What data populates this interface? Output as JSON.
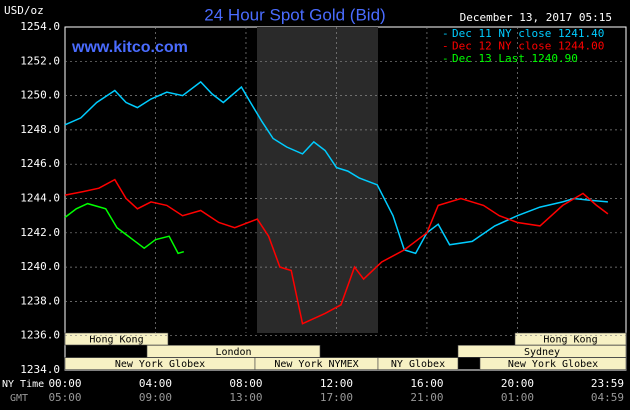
{
  "chart_data": {
    "type": "line",
    "title": "24 Hour Spot Gold (Bid)",
    "y_label": "USD/oz",
    "source": "www.kitco.com",
    "timestamp": "December 13, 2017 05:15",
    "x_row_labels": [
      "NY Time",
      "GMT"
    ],
    "xlim": [
      0,
      24.8
    ],
    "xticks": [
      {
        "value": 0,
        "label": "00:00"
      },
      {
        "value": 4,
        "label": "04:00"
      },
      {
        "value": 8,
        "label": "08:00"
      },
      {
        "value": 12,
        "label": "12:00"
      },
      {
        "value": 16,
        "label": "16:00"
      },
      {
        "value": 20,
        "label": "20:00"
      },
      {
        "value": 23.98,
        "label": "23:59"
      }
    ],
    "x_labels_gmt": [
      "05:00",
      "09:00",
      "13:00",
      "17:00",
      "21:00",
      "01:00",
      "04:59"
    ],
    "ylim": [
      1234,
      1254
    ],
    "yticks": [
      {
        "value": 1234,
        "label": "1234.0"
      },
      {
        "value": 1236,
        "label": "1236.0"
      },
      {
        "value": 1238,
        "label": "1238.0"
      },
      {
        "value": 1240,
        "label": "1240.0"
      },
      {
        "value": 1242,
        "label": "1242.0"
      },
      {
        "value": 1244,
        "label": "1244.0"
      },
      {
        "value": 1246,
        "label": "1246.0"
      },
      {
        "value": 1248,
        "label": "1248.0"
      },
      {
        "value": 1250,
        "label": "1250.0"
      },
      {
        "value": 1252,
        "label": "1252.0"
      },
      {
        "value": 1254,
        "label": "1254.0"
      }
    ],
    "grid": true,
    "sessions": [
      "Hong Kong",
      "London",
      "New York Globex",
      "New York NYMEX",
      "NY Globex",
      "Sydney"
    ],
    "series": [
      {
        "name": "Dec 11 NY close 1241.40",
        "color": "#00ccff",
        "x": [
          0,
          0.7,
          1.4,
          2.2,
          2.7,
          3.2,
          3.8,
          4.5,
          5.2,
          6,
          6.5,
          7,
          7.8,
          8.2,
          8.7,
          9.2,
          9.8,
          10.5,
          11,
          11.5,
          12,
          12.5,
          13,
          13.8,
          14.5,
          15,
          15.5,
          16,
          16.5,
          17,
          18,
          19,
          20,
          21,
          22,
          22.5,
          23.2,
          24
        ],
        "values": [
          1248.3,
          1248.7,
          1249.6,
          1250.3,
          1249.6,
          1249.3,
          1249.8,
          1250.2,
          1250.0,
          1250.8,
          1250.1,
          1249.6,
          1250.5,
          1249.6,
          1248.5,
          1247.5,
          1247.0,
          1246.6,
          1247.3,
          1246.8,
          1245.8,
          1245.6,
          1245.2,
          1244.8,
          1243.0,
          1241.0,
          1240.8,
          1242.0,
          1242.5,
          1241.3,
          1241.5,
          1242.4,
          1243.0,
          1243.5,
          1243.8,
          1244.0,
          1243.9,
          1243.8
        ]
      },
      {
        "name": "Dec 12 NY close 1244.00",
        "color": "#ff0000",
        "x": [
          0,
          0.8,
          1.5,
          2.2,
          2.7,
          3.2,
          3.8,
          4.5,
          5.2,
          6,
          6.8,
          7.5,
          8.5,
          9,
          9.5,
          10,
          10.5,
          11,
          11.5,
          12.2,
          12.8,
          13.2,
          14,
          15,
          16,
          16.5,
          17.5,
          18.5,
          19.2,
          20,
          21,
          22,
          22.9,
          23.5,
          24
        ],
        "values": [
          1244.2,
          1244.4,
          1244.6,
          1245.1,
          1244.0,
          1243.4,
          1243.8,
          1243.6,
          1243.0,
          1243.3,
          1242.6,
          1242.3,
          1242.8,
          1241.8,
          1240.0,
          1239.8,
          1236.7,
          1237.0,
          1237.3,
          1237.8,
          1240.0,
          1239.3,
          1240.3,
          1241.0,
          1242.0,
          1243.6,
          1244.0,
          1243.6,
          1243.0,
          1242.6,
          1242.4,
          1243.6,
          1244.3,
          1243.6,
          1243.1
        ]
      },
      {
        "name": "Dec 13 Last 1240.90",
        "color": "#00ff00",
        "x": [
          0,
          0.5,
          1,
          1.8,
          2.3,
          3,
          3.5,
          4,
          4.6,
          5,
          5.25
        ],
        "values": [
          1242.9,
          1243.4,
          1243.7,
          1243.4,
          1242.3,
          1241.6,
          1241.1,
          1241.6,
          1241.8,
          1240.8,
          1240.9
        ]
      }
    ]
  }
}
